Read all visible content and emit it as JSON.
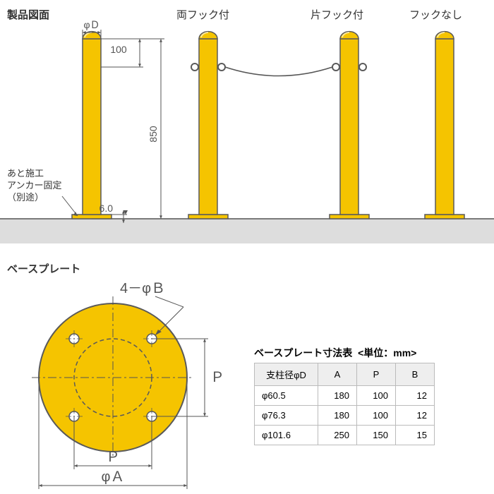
{
  "labels": {
    "title": "製品図面",
    "both_hook": "両フック付",
    "one_hook": "片フック付",
    "no_hook": "フックなし",
    "phiD": "φＤ",
    "anchor_note_l1": "あと施工",
    "anchor_note_l2": "アンカー固定",
    "anchor_note_l3": "（別途）",
    "baseplate_heading": "ベースプレート",
    "phiB_label": "4－φＢ",
    "P": "Ｐ",
    "phiA": "φＡ",
    "P2": "Ｐ"
  },
  "dims": {
    "h100": "100",
    "h850": "850",
    "t6": "6.0"
  },
  "post_color": "#f5c400",
  "post_outline": "#5a5a5a",
  "ground_color": "#dddddd",
  "line_color": "#555555",
  "table": {
    "title": "ベースプレート寸法表",
    "unit": "<単位：mm>",
    "headers": [
      "支柱径φD",
      "A",
      "P",
      "B"
    ],
    "rows": [
      [
        "φ60.5",
        "180",
        "100",
        "12"
      ],
      [
        "φ76.3",
        "180",
        "100",
        "12"
      ],
      [
        "φ101.6",
        "250",
        "150",
        "15"
      ]
    ]
  }
}
